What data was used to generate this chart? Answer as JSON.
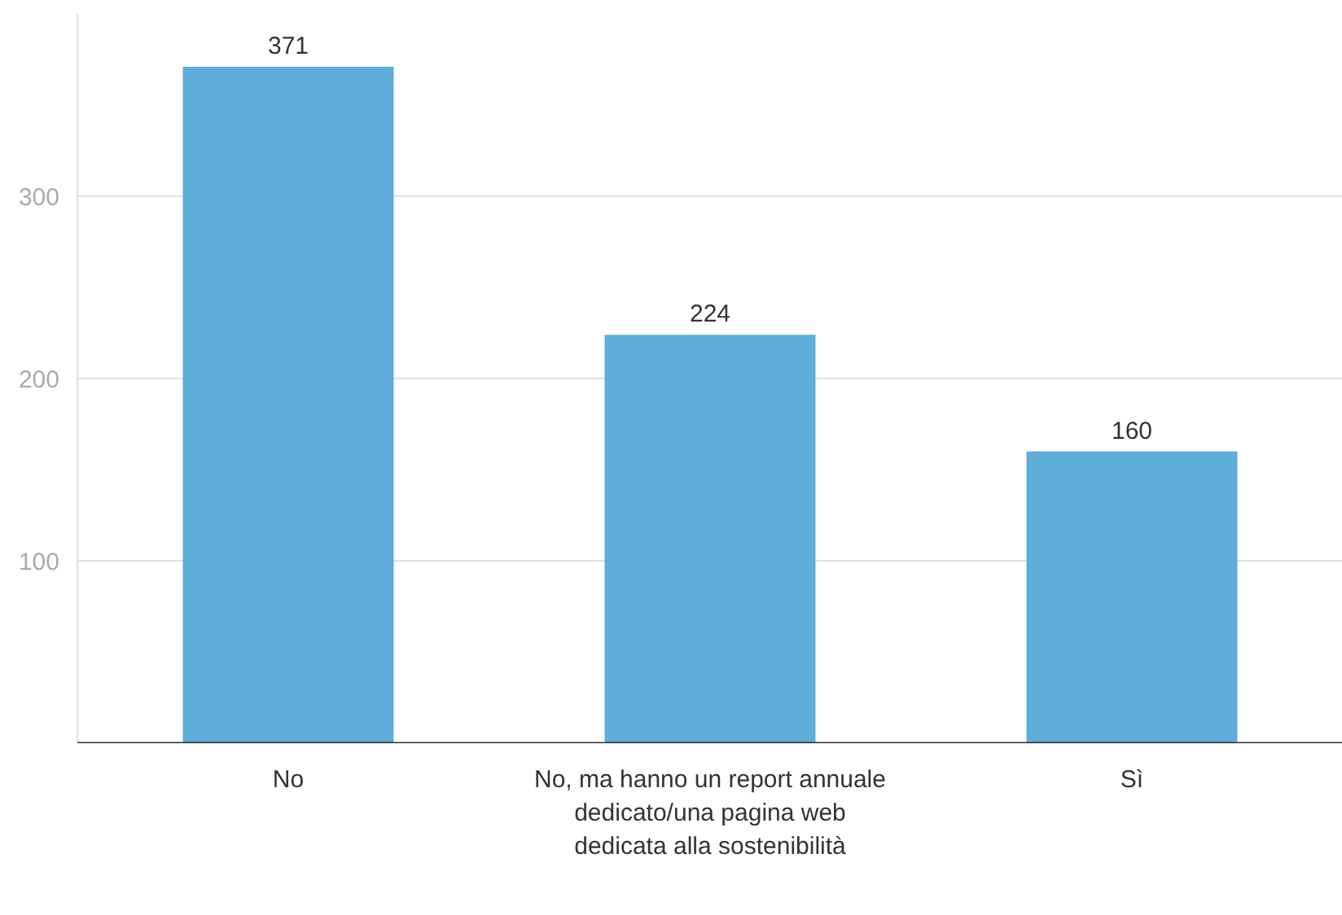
{
  "chart_data": {
    "type": "bar",
    "categories": [
      "No",
      "No, ma hanno un report annuale dedicato/una pagina web dedicata alla sostenibilità",
      "Sì"
    ],
    "values": [
      371,
      224,
      160
    ],
    "color": "#5fadd9",
    "ylim": [
      0,
      400
    ],
    "yticks": [
      100,
      200,
      300
    ],
    "grid": "y",
    "data_labels": true
  }
}
